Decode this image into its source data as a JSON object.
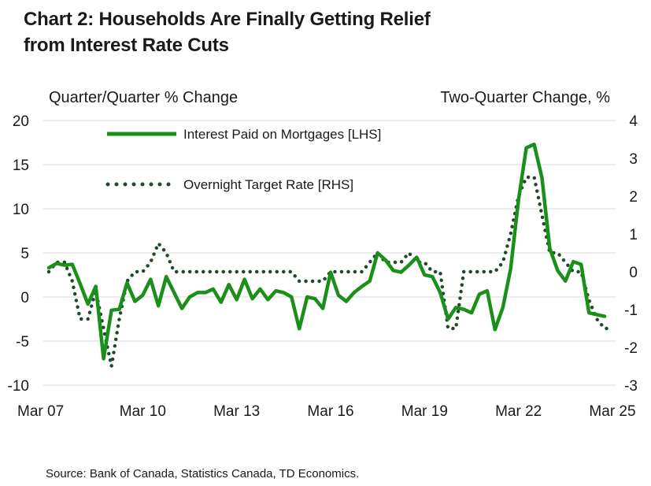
{
  "title_line1": "Chart 2: Households Are Finally Getting Relief",
  "title_line2": "from Interest Rate Cuts",
  "source": "Source: Bank of Canada, Statistics Canada, TD Economics.",
  "chart_data": {
    "type": "line",
    "title": "Chart 2: Households Are Finally Getting Relief from Interest Rate Cuts",
    "ylabel_left": "Quarter/Quarter % Change",
    "ylabel_right": "Two-Quarter Change, %",
    "ylim_left": [
      -10,
      20
    ],
    "ylim_right": [
      -3,
      4
    ],
    "yticks_left": [
      "20",
      "15",
      "10",
      "5",
      "0",
      "-5",
      "-10"
    ],
    "yticks_right": [
      "4",
      "3",
      "2",
      "1",
      "0",
      "-1",
      "-2",
      "-3"
    ],
    "x_tick_labels": [
      "Mar 07",
      "Mar 10",
      "Mar 13",
      "Mar 16",
      "Mar 19",
      "Mar 22",
      "Mar 25"
    ],
    "x_tick_positions": [
      2007,
      2010,
      2013,
      2016,
      2019,
      2022,
      2025
    ],
    "xlim": [
      2007,
      2025
    ],
    "colors": {
      "mortgage": "#1a8f1a",
      "overnight": "#1f4a2a"
    },
    "series": [
      {
        "name": "Interest Paid on Mortgages [LHS]",
        "axis": "left",
        "style": "solid",
        "x": [
          2007.0,
          2007.25,
          2007.5,
          2007.75,
          2008.0,
          2008.25,
          2008.5,
          2008.75,
          2009.0,
          2009.25,
          2009.5,
          2009.75,
          2010.0,
          2010.25,
          2010.5,
          2010.75,
          2011.0,
          2011.25,
          2011.5,
          2011.75,
          2012.0,
          2012.25,
          2012.5,
          2012.75,
          2013.0,
          2013.25,
          2013.5,
          2013.75,
          2014.0,
          2014.25,
          2014.5,
          2014.75,
          2015.0,
          2015.25,
          2015.5,
          2015.75,
          2016.0,
          2016.25,
          2016.5,
          2016.75,
          2017.0,
          2017.25,
          2017.5,
          2017.75,
          2018.0,
          2018.25,
          2018.5,
          2018.75,
          2019.0,
          2019.25,
          2019.5,
          2019.75,
          2020.0,
          2020.25,
          2020.5,
          2020.75,
          2021.0,
          2021.25,
          2021.5,
          2021.75,
          2022.0,
          2022.25,
          2022.5,
          2022.75,
          2023.0,
          2023.25,
          2023.5,
          2023.75,
          2024.0,
          2024.25,
          2024.5,
          2024.75
        ],
        "values": [
          3.3,
          3.8,
          3.6,
          3.7,
          1.5,
          -0.8,
          1.2,
          -7.0,
          -1.5,
          -1.4,
          1.6,
          -0.5,
          0.2,
          2.0,
          -1.0,
          2.3,
          0.5,
          -1.3,
          0.0,
          0.5,
          0.5,
          0.9,
          -0.6,
          1.4,
          -0.3,
          2.0,
          -0.2,
          0.9,
          -0.3,
          0.7,
          0.5,
          0.0,
          -3.6,
          0.0,
          -0.2,
          -1.3,
          2.8,
          0.2,
          -0.5,
          0.5,
          1.2,
          1.8,
          5.0,
          4.2,
          3.0,
          2.8,
          3.6,
          4.5,
          2.5,
          2.3,
          0.5,
          -2.5,
          -1.2,
          -1.4,
          -1.8,
          0.3,
          0.7,
          -3.7,
          -1.2,
          3.2,
          11.0,
          16.9,
          17.3,
          13.5,
          5.5,
          3.0,
          1.8,
          4.0,
          3.7,
          -1.8,
          -2.0,
          -2.2
        ]
      },
      {
        "name": "Overnight Target Rate [RHS]",
        "axis": "right",
        "style": "dotted",
        "x": [
          2007.0,
          2007.25,
          2007.5,
          2007.75,
          2008.0,
          2008.25,
          2008.5,
          2008.75,
          2009.0,
          2009.25,
          2009.5,
          2009.75,
          2010.0,
          2010.25,
          2010.5,
          2010.75,
          2011.0,
          2011.25,
          2011.5,
          2011.75,
          2012.0,
          2012.25,
          2012.5,
          2012.75,
          2013.0,
          2013.25,
          2013.5,
          2013.75,
          2014.0,
          2014.25,
          2014.5,
          2014.75,
          2015.0,
          2015.25,
          2015.5,
          2015.75,
          2016.0,
          2016.25,
          2016.5,
          2016.75,
          2017.0,
          2017.25,
          2017.5,
          2017.75,
          2018.0,
          2018.25,
          2018.5,
          2018.75,
          2019.0,
          2019.25,
          2019.5,
          2019.75,
          2020.0,
          2020.25,
          2020.5,
          2020.75,
          2021.0,
          2021.25,
          2021.5,
          2021.75,
          2022.0,
          2022.25,
          2022.5,
          2022.75,
          2023.0,
          2023.25,
          2023.5,
          2023.75,
          2024.0,
          2024.25,
          2024.5,
          2024.75,
          2025.0
        ],
        "values": [
          0.0,
          0.25,
          0.25,
          -0.25,
          -1.25,
          -1.25,
          -0.5,
          -1.5,
          -2.5,
          -1.25,
          -0.25,
          0.0,
          0.0,
          0.25,
          0.75,
          0.5,
          0.0,
          0.0,
          0.0,
          0.0,
          0.0,
          0.0,
          0.0,
          0.0,
          0.0,
          0.0,
          0.0,
          0.0,
          0.0,
          0.0,
          0.0,
          0.0,
          -0.25,
          -0.25,
          -0.25,
          -0.25,
          0.0,
          0.0,
          0.0,
          0.0,
          0.0,
          0.25,
          0.5,
          0.25,
          0.25,
          0.25,
          0.5,
          0.25,
          0.25,
          0.0,
          0.0,
          -1.5,
          -1.5,
          0.0,
          0.0,
          0.0,
          0.0,
          0.0,
          0.25,
          1.0,
          2.0,
          2.5,
          2.5,
          1.5,
          0.5,
          0.5,
          0.25,
          0.0,
          0.0,
          -0.75,
          -1.25,
          -1.5,
          -1.5
        ]
      }
    ]
  }
}
